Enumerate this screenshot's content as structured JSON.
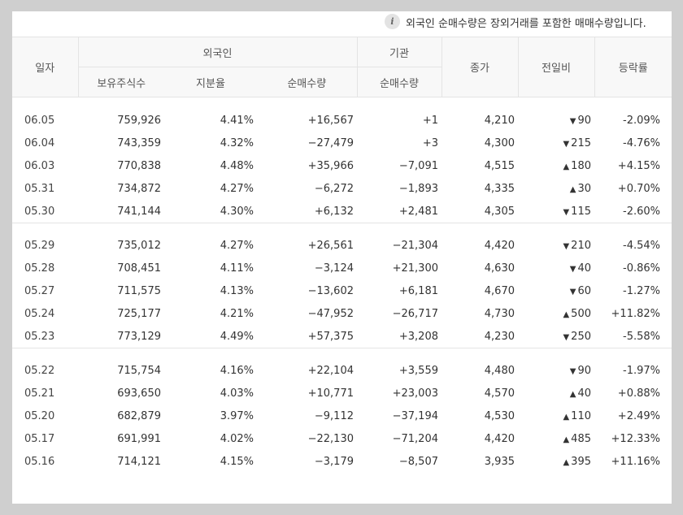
{
  "notice": {
    "icon": "info-icon",
    "text": "외국인 순매수량은 장외거래를 포함한 매매수량입니다."
  },
  "headers": {
    "date": "일자",
    "foreign": "외국인",
    "institution": "기관",
    "close": "종가",
    "change": "전일비",
    "rate": "등락률",
    "holdings": "보유주식수",
    "ratio": "지분율",
    "net_foreign": "순매수량",
    "net_inst": "순매수량"
  },
  "colors": {
    "up": "#e0262d",
    "down": "#2a63c9"
  },
  "groups": [
    [
      {
        "date": "06.05",
        "holdings": "759,926",
        "ratio": "4.41%",
        "net_foreign": "+16,567",
        "net_inst": "+1",
        "close": "4,210",
        "change": "90",
        "dir": "down",
        "rate": "-2.09%"
      },
      {
        "date": "06.04",
        "holdings": "743,359",
        "ratio": "4.32%",
        "net_foreign": "−27,479",
        "net_inst": "+3",
        "close": "4,300",
        "change": "215",
        "dir": "down",
        "rate": "-4.76%"
      },
      {
        "date": "06.03",
        "holdings": "770,838",
        "ratio": "4.48%",
        "net_foreign": "+35,966",
        "net_inst": "−7,091",
        "close": "4,515",
        "change": "180",
        "dir": "up",
        "rate": "+4.15%"
      },
      {
        "date": "05.31",
        "holdings": "734,872",
        "ratio": "4.27%",
        "net_foreign": "−6,272",
        "net_inst": "−1,893",
        "close": "4,335",
        "change": "30",
        "dir": "up",
        "rate": "+0.70%"
      },
      {
        "date": "05.30",
        "holdings": "741,144",
        "ratio": "4.30%",
        "net_foreign": "+6,132",
        "net_inst": "+2,481",
        "close": "4,305",
        "change": "115",
        "dir": "down",
        "rate": "-2.60%"
      }
    ],
    [
      {
        "date": "05.29",
        "holdings": "735,012",
        "ratio": "4.27%",
        "net_foreign": "+26,561",
        "net_inst": "−21,304",
        "close": "4,420",
        "change": "210",
        "dir": "down",
        "rate": "-4.54%"
      },
      {
        "date": "05.28",
        "holdings": "708,451",
        "ratio": "4.11%",
        "net_foreign": "−3,124",
        "net_inst": "+21,300",
        "close": "4,630",
        "change": "40",
        "dir": "down",
        "rate": "-0.86%"
      },
      {
        "date": "05.27",
        "holdings": "711,575",
        "ratio": "4.13%",
        "net_foreign": "−13,602",
        "net_inst": "+6,181",
        "close": "4,670",
        "change": "60",
        "dir": "down",
        "rate": "-1.27%"
      },
      {
        "date": "05.24",
        "holdings": "725,177",
        "ratio": "4.21%",
        "net_foreign": "−47,952",
        "net_inst": "−26,717",
        "close": "4,730",
        "change": "500",
        "dir": "up",
        "rate": "+11.82%"
      },
      {
        "date": "05.23",
        "holdings": "773,129",
        "ratio": "4.49%",
        "net_foreign": "+57,375",
        "net_inst": "+3,208",
        "close": "4,230",
        "change": "250",
        "dir": "down",
        "rate": "-5.58%"
      }
    ],
    [
      {
        "date": "05.22",
        "holdings": "715,754",
        "ratio": "4.16%",
        "net_foreign": "+22,104",
        "net_inst": "+3,559",
        "close": "4,480",
        "change": "90",
        "dir": "down",
        "rate": "-1.97%"
      },
      {
        "date": "05.21",
        "holdings": "693,650",
        "ratio": "4.03%",
        "net_foreign": "+10,771",
        "net_inst": "+23,003",
        "close": "4,570",
        "change": "40",
        "dir": "up",
        "rate": "+0.88%"
      },
      {
        "date": "05.20",
        "holdings": "682,879",
        "ratio": "3.97%",
        "net_foreign": "−9,112",
        "net_inst": "−37,194",
        "close": "4,530",
        "change": "110",
        "dir": "up",
        "rate": "+2.49%"
      },
      {
        "date": "05.17",
        "holdings": "691,991",
        "ratio": "4.02%",
        "net_foreign": "−22,130",
        "net_inst": "−71,204",
        "close": "4,420",
        "change": "485",
        "dir": "up",
        "rate": "+12.33%"
      },
      {
        "date": "05.16",
        "holdings": "714,121",
        "ratio": "4.15%",
        "net_foreign": "−3,179",
        "net_inst": "−8,507",
        "close": "3,935",
        "change": "395",
        "dir": "up",
        "rate": "+11.16%"
      }
    ]
  ]
}
